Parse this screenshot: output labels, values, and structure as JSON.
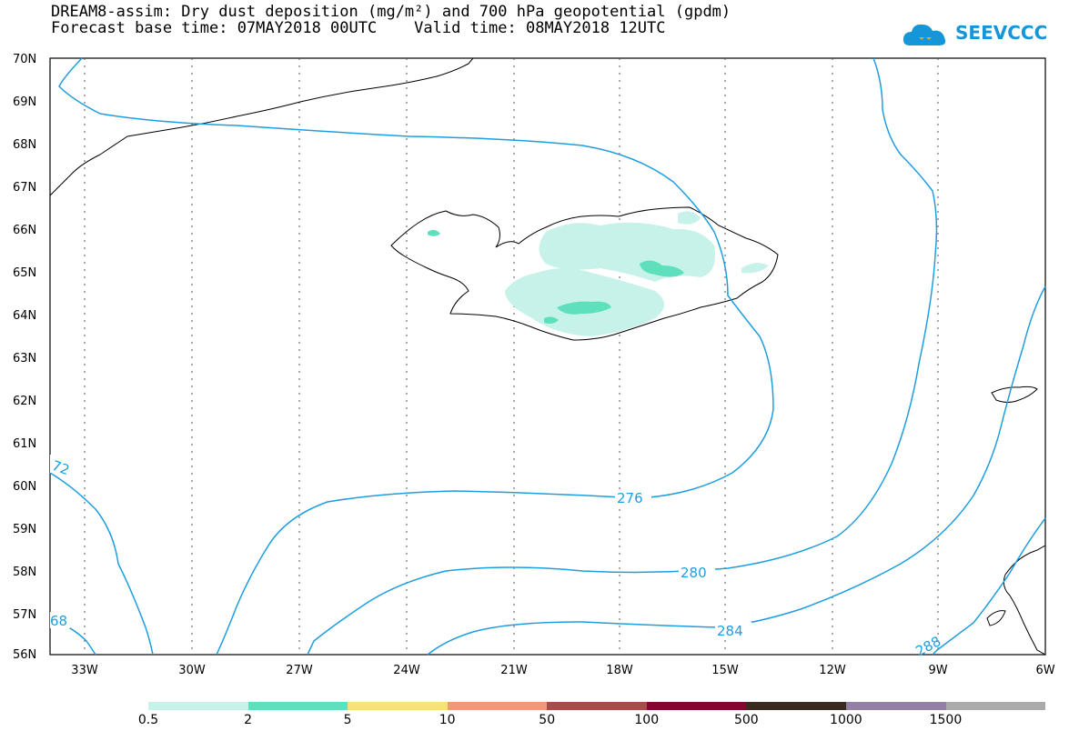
{
  "title_line1": "DREAM8-assim: Dry dust deposition (mg/m²) and 700 hPa geopotential (gpdm)",
  "title_line2": "Forecast base time: 07MAY2018 00UTC    Valid time: 08MAY2018 12UTC",
  "logo_text": "SEEVCCC",
  "lat_labels": [
    "70N",
    "69N",
    "68N",
    "67N",
    "66N",
    "65N",
    "64N",
    "63N",
    "62N",
    "61N",
    "60N",
    "59N",
    "58N",
    "57N",
    "56N"
  ],
  "lon_labels": [
    "33W",
    "30W",
    "27W",
    "24W",
    "21W",
    "18W",
    "15W",
    "12W",
    "9W",
    "6W"
  ],
  "contour_labels": [
    "276",
    "280",
    "284",
    "288",
    "72",
    "68"
  ],
  "legend": {
    "colors": [
      "#c6f2ea",
      "#5ee0bc",
      "#f7e27a",
      "#ec9a78",
      "#a04f4a",
      "#830631",
      "#3a2b1e",
      "#9480a5",
      "#aaaaaa"
    ],
    "labels": [
      "0.5",
      "2",
      "5",
      "10",
      "50",
      "100",
      "500",
      "1000",
      "1500"
    ]
  }
}
